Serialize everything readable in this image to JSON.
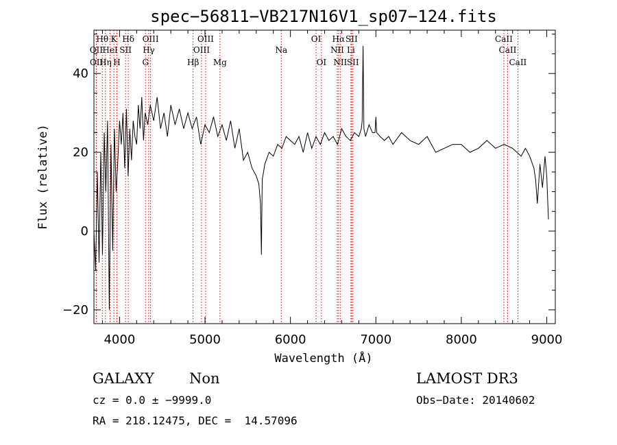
{
  "chart_data": {
    "type": "line",
    "title": "spec−56811−VB217N16V1_sp07−124.fits",
    "xlabel": "Wavelength (Å)",
    "ylabel": "Flux (relative)",
    "xlim": [
      3700,
      9100
    ],
    "ylim": [
      -23.5,
      51
    ],
    "x_ticks": [
      4000,
      5000,
      6000,
      7000,
      8000,
      9000
    ],
    "y_ticks": [
      -20,
      0,
      20,
      40
    ],
    "x_tick_labels": [
      "4000",
      "5000",
      "6000",
      "7000",
      "8000",
      "9000"
    ],
    "y_tick_labels": [
      "−20",
      "0",
      "20",
      "40"
    ],
    "x_minor_step": 200,
    "y_minor_step": 5,
    "grid": false,
    "series": [
      {
        "name": "flux",
        "color": "#000000",
        "x": [
          3700,
          3720,
          3740,
          3760,
          3780,
          3800,
          3820,
          3840,
          3860,
          3880,
          3900,
          3920,
          3940,
          3960,
          3980,
          4000,
          4020,
          4040,
          4060,
          4080,
          4100,
          4120,
          4140,
          4160,
          4180,
          4200,
          4220,
          4240,
          4260,
          4280,
          4300,
          4330,
          4360,
          4400,
          4440,
          4480,
          4520,
          4560,
          4600,
          4650,
          4700,
          4750,
          4800,
          4850,
          4900,
          4950,
          5000,
          5050,
          5100,
          5150,
          5200,
          5250,
          5300,
          5350,
          5400,
          5450,
          5500,
          5550,
          5600,
          5630,
          5650,
          5660,
          5670,
          5700,
          5750,
          5800,
          5850,
          5900,
          5950,
          6000,
          6050,
          6100,
          6150,
          6200,
          6250,
          6300,
          6350,
          6400,
          6450,
          6500,
          6550,
          6600,
          6650,
          6700,
          6750,
          6800,
          6830,
          6840,
          6850,
          6860,
          6880,
          6920,
          6960,
          6990,
          7000,
          7010,
          7050,
          7100,
          7150,
          7200,
          7300,
          7400,
          7500,
          7600,
          7700,
          7800,
          7900,
          8000,
          8100,
          8200,
          8300,
          8400,
          8500,
          8600,
          8700,
          8750,
          8800,
          8850,
          8870,
          8890,
          8920,
          8950,
          8980,
          9000,
          9020
        ],
        "values": [
          0,
          -10,
          15,
          -8,
          20,
          -6,
          25,
          10,
          28,
          -20,
          22,
          -5,
          26,
          10,
          18,
          28,
          22,
          30,
          16,
          31,
          14,
          26,
          18,
          28,
          24,
          22,
          32,
          26,
          34,
          23,
          30,
          27,
          32,
          28,
          34,
          26,
          30,
          24,
          32,
          27,
          31,
          26,
          30,
          26,
          29,
          22,
          27,
          25,
          29,
          24,
          27,
          23,
          28,
          21,
          26,
          18,
          20,
          16,
          14,
          12,
          7,
          -6,
          13,
          17,
          20,
          19,
          22,
          21,
          24,
          23,
          22,
          24,
          20,
          25,
          21,
          24,
          22,
          25,
          23,
          24,
          22,
          26,
          24,
          23,
          25,
          24,
          26,
          28,
          47,
          26,
          24,
          27,
          25,
          25,
          29,
          25,
          24,
          23,
          24,
          22,
          25,
          23,
          22,
          24,
          20,
          21,
          22,
          22,
          20,
          21,
          23,
          21,
          22,
          21,
          19,
          21,
          19,
          16,
          13,
          7,
          17,
          11,
          19,
          14,
          3
        ]
      }
    ],
    "spectral_lines": [
      {
        "label": "OII",
        "wavelength": 3727,
        "row": 2
      },
      {
        "label": "OII",
        "wavelength": 3729,
        "row": 3
      },
      {
        "label": "Hθ",
        "wavelength": 3798,
        "row": 1
      },
      {
        "label": "HeI",
        "wavelength": 3889,
        "row": 2
      },
      {
        "label": "Hη",
        "wavelength": 3835,
        "row": 3
      },
      {
        "label": "K",
        "wavelength": 3934,
        "row": 1
      },
      {
        "label": "H",
        "wavelength": 3969,
        "row": 3
      },
      {
        "label": "SII",
        "wavelength": 4070,
        "row": 2
      },
      {
        "label": "Hδ",
        "wavelength": 4102,
        "row": 1
      },
      {
        "label": "G",
        "wavelength": 4304,
        "row": 3
      },
      {
        "label": "Hγ",
        "wavelength": 4341,
        "row": 2
      },
      {
        "label": "OIII",
        "wavelength": 4363,
        "row": 1
      },
      {
        "label": "Hβ",
        "wavelength": 4861,
        "row": 3
      },
      {
        "label": "OIII",
        "wavelength": 4959,
        "row": 2
      },
      {
        "label": "OIII",
        "wavelength": 5007,
        "row": 1
      },
      {
        "label": "Mg",
        "wavelength": 5175,
        "row": 3
      },
      {
        "label": "Na",
        "wavelength": 5893,
        "row": 2
      },
      {
        "label": "OI",
        "wavelength": 6300,
        "row": 1
      },
      {
        "label": "OI",
        "wavelength": 6363,
        "row": 3
      },
      {
        "label": "NII",
        "wavelength": 6548,
        "row": 2
      },
      {
        "label": "Hα",
        "wavelength": 6563,
        "row": 1
      },
      {
        "label": "NII",
        "wavelength": 6583,
        "row": 3
      },
      {
        "label": "SII",
        "wavelength": 6716,
        "row": 1
      },
      {
        "label": "Li",
        "wavelength": 6708,
        "row": 2
      },
      {
        "label": "SII",
        "wavelength": 6731,
        "row": 3
      },
      {
        "label": "CaII",
        "wavelength": 8498,
        "row": 1
      },
      {
        "label": "CaII",
        "wavelength": 8542,
        "row": 2
      },
      {
        "label": "CaII",
        "wavelength": 8662,
        "row": 3
      }
    ]
  },
  "info": {
    "object_class": "GALAXY",
    "subclass": "Non",
    "cz_line": "cz = 0.0 ± −9999.0",
    "coords_line": "RA = 218.12475, DEC =  14.57096",
    "survey": "LAMOST DR3",
    "obs_date_line": "Obs−Date: 20140602"
  }
}
